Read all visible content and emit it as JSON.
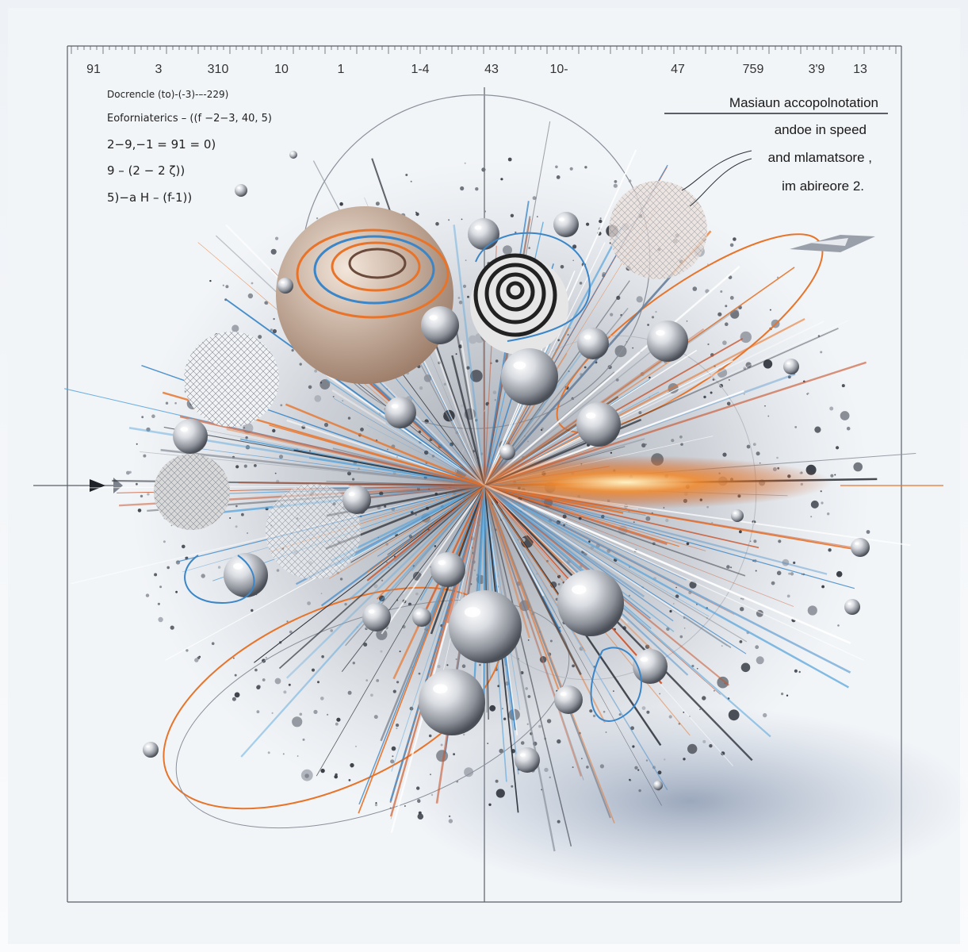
{
  "scale_top": {
    "tick_labels": [
      "91",
      "3",
      "310",
      "10",
      "1",
      "1-4",
      "43",
      "10-",
      "47",
      "759",
      "3'9",
      "13"
    ]
  },
  "formulas": [
    "Docrencle (to)-(-3)-–-229)",
    "Eoforniaterics – ((f −2−3, 40, 5)",
    "2−9,−1 = 91 = 0)",
    "9 – (2 − 2 ζ))",
    "5)−a H – (f-1))"
  ],
  "annotation": {
    "lines": [
      "Masiaun accopolnotation",
      "andoe in speed",
      "and mlamatsore ,",
      "im abireore 2."
    ]
  },
  "colors": {
    "background": "#eef2f6",
    "orange": "#e8742a",
    "blue": "#3a86c8",
    "silver": "#c8ccd2",
    "dark": "#2a2e36"
  }
}
